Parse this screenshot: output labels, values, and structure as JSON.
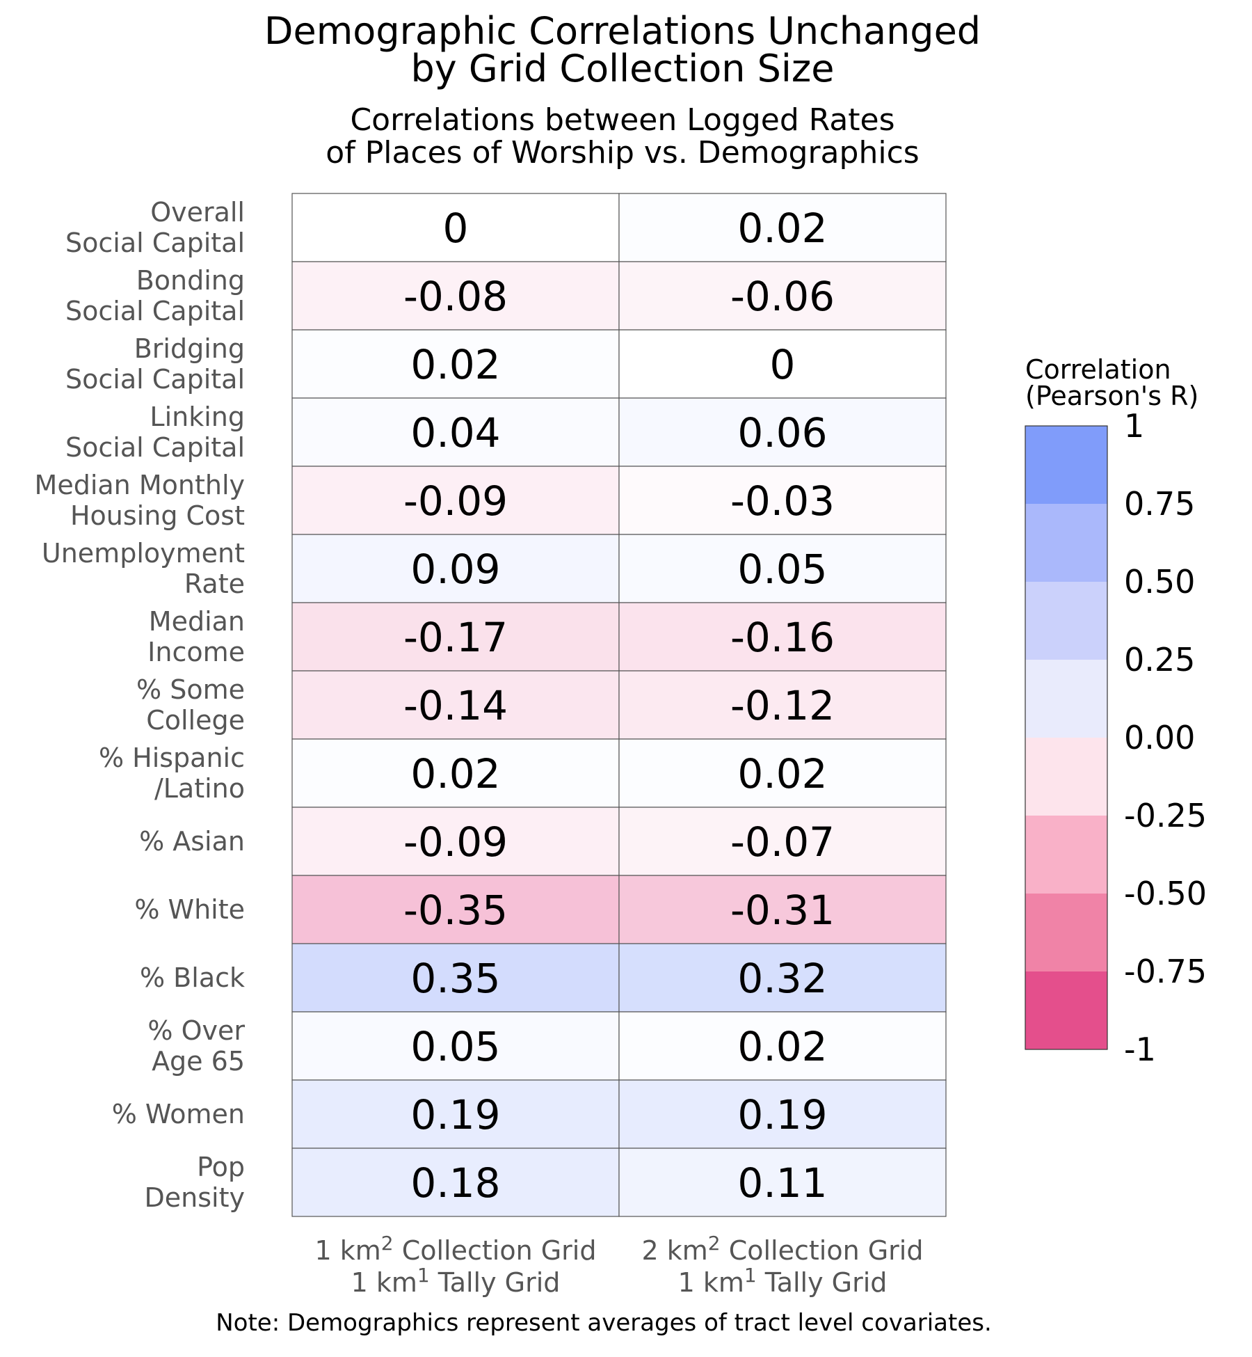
{
  "chart_data": {
    "type": "heatmap",
    "title": [
      "Demographic Correlations Unchanged",
      "by Grid Collection Size"
    ],
    "subtitle": [
      "Correlations between Logged Rates",
      "of Places of Worship vs. Demographics"
    ],
    "rows": [
      [
        "Overall",
        "Social Capital"
      ],
      [
        "Bonding",
        "Social Capital"
      ],
      [
        "Bridging",
        "Social Capital"
      ],
      [
        "Linking",
        "Social Capital"
      ],
      [
        "Median Monthly",
        "Housing Cost"
      ],
      [
        "Unemployment",
        "Rate"
      ],
      [
        "Median",
        "Income"
      ],
      [
        "% Some",
        "College"
      ],
      [
        "% Hispanic",
        "/Latino"
      ],
      [
        "% Asian"
      ],
      [
        "% White"
      ],
      [
        "% Black"
      ],
      [
        "% Over",
        "Age 65"
      ],
      [
        "% Women"
      ],
      [
        "Pop",
        "Density"
      ]
    ],
    "columns": [
      {
        "line1": {
          "pre": "1 km",
          "sup": "2",
          "post": " Collection Grid"
        },
        "line2": {
          "pre": "1 km",
          "sup": "1",
          "post": " Tally Grid"
        }
      },
      {
        "line1": {
          "pre": "2 km",
          "sup": "2",
          "post": " Collection Grid"
        },
        "line2": {
          "pre": "1 km",
          "sup": "1",
          "post": " Tally Grid"
        }
      }
    ],
    "values": [
      [
        0,
        0.02
      ],
      [
        -0.08,
        -0.06
      ],
      [
        0.02,
        0
      ],
      [
        0.04,
        0.06
      ],
      [
        -0.09,
        -0.03
      ],
      [
        0.09,
        0.05
      ],
      [
        -0.17,
        -0.16
      ],
      [
        -0.14,
        -0.12
      ],
      [
        0.02,
        0.02
      ],
      [
        -0.09,
        -0.07
      ],
      [
        -0.35,
        -0.31
      ],
      [
        0.35,
        0.32
      ],
      [
        0.05,
        0.02
      ],
      [
        0.19,
        0.19
      ],
      [
        0.18,
        0.11
      ]
    ],
    "legend": {
      "title": [
        "Correlation",
        "(Pearson's R)"
      ],
      "placement": "right",
      "range": [
        -1,
        1
      ],
      "tick_values": [
        1,
        0.75,
        0.5,
        0.25,
        0,
        -0.25,
        -0.5,
        -0.75,
        -1
      ],
      "tick_labels": [
        "1",
        "0.75",
        "0.50",
        "0.25",
        "0.00",
        "-0.25",
        "-0.50",
        "-0.75",
        "-1"
      ],
      "bins_top_to_bottom": [
        "#809cfa",
        "#aab8fb",
        "#cbd1fb",
        "#e9ebfc",
        "#fde4ec",
        "#f9b1c8",
        "#f083a7",
        "#e44f8c"
      ]
    },
    "colors": {
      "positive_max": "#809cfa",
      "neutral": "#ffffff",
      "negative_max": "#e44f8c"
    },
    "note": "Note: Demographics represent averages of tract level covariates."
  }
}
